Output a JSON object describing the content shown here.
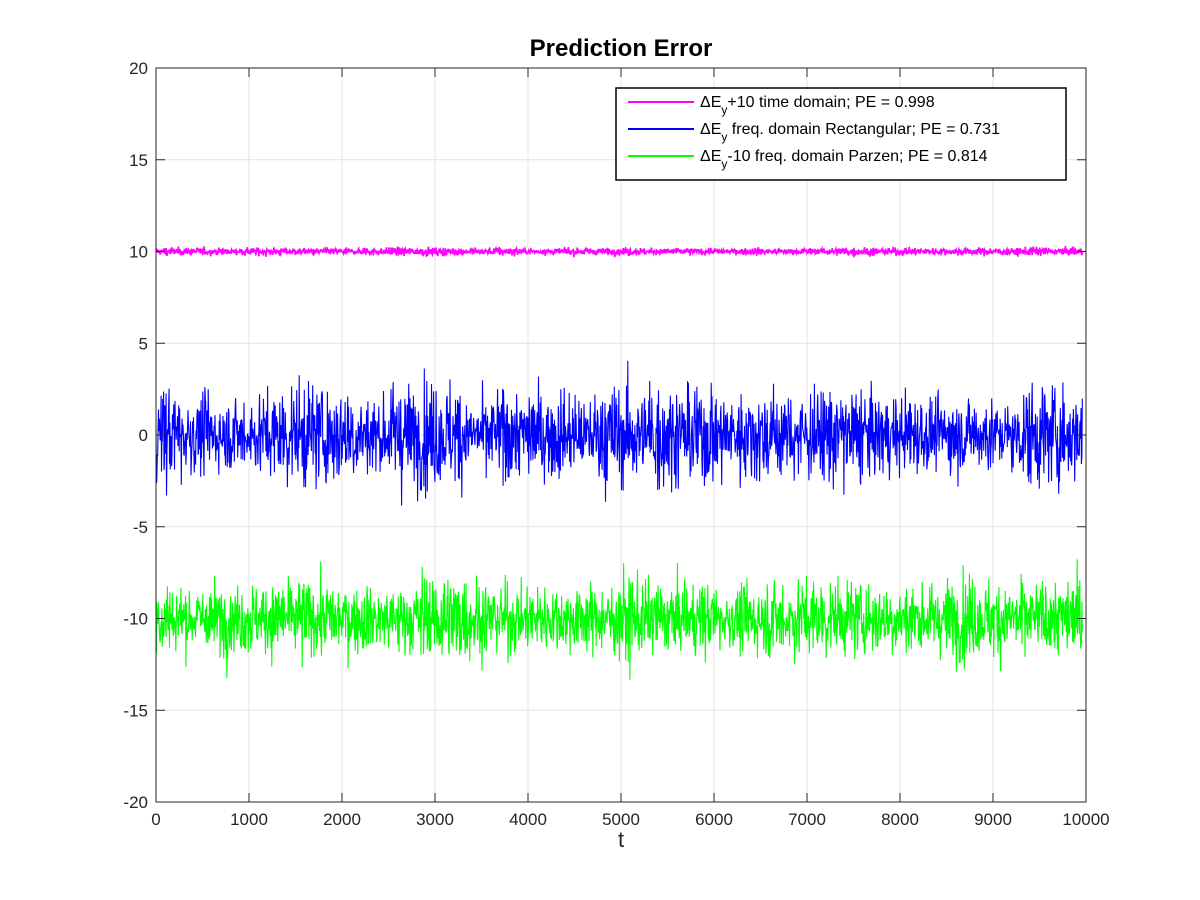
{
  "chart_data": {
    "type": "line",
    "title": "Prediction Error",
    "xlabel": "t",
    "ylabel": "",
    "xlim": [
      0,
      10000
    ],
    "ylim": [
      -20,
      20
    ],
    "xticks": [
      0,
      1000,
      2000,
      3000,
      4000,
      5000,
      6000,
      7000,
      8000,
      9000,
      10000
    ],
    "yticks": [
      20,
      15,
      10,
      5,
      0,
      -5,
      -10,
      -15,
      -20
    ],
    "grid": true,
    "legend_position": "top-right",
    "series": [
      {
        "name": "ΔEy+10 time domain; PE = 0.998",
        "legend_main": "ΔE",
        "legend_sub": "y",
        "legend_rest": "+10 time domain; PE = 0.998",
        "color": "#ff00ff",
        "offset": 10,
        "x_range": [
          0,
          9960
        ],
        "amplitude_envelope": [
          -0.3,
          0.3
        ],
        "y_min": 9.6,
        "y_max": 10.3
      },
      {
        "name": "ΔEy freq. domain Rectangular; PE = 0.731",
        "legend_main": "ΔE",
        "legend_sub": "y",
        "legend_rest": " freq. domain Rectangular; PE = 0.731",
        "color": "#0000ff",
        "offset": 0,
        "x_range": [
          0,
          9960
        ],
        "y_min": -4.1,
        "y_max": 4.7
      },
      {
        "name": "ΔEy-10 freq. domain Parzen; PE = 0.814",
        "legend_main": "ΔE",
        "legend_sub": "y",
        "legend_rest": "-10 freq. domain Parzen; PE = 0.814",
        "color": "#00ff00",
        "offset": -10,
        "x_range": [
          0,
          9960
        ],
        "y_min": -13.9,
        "y_max": -6.3
      }
    ]
  }
}
